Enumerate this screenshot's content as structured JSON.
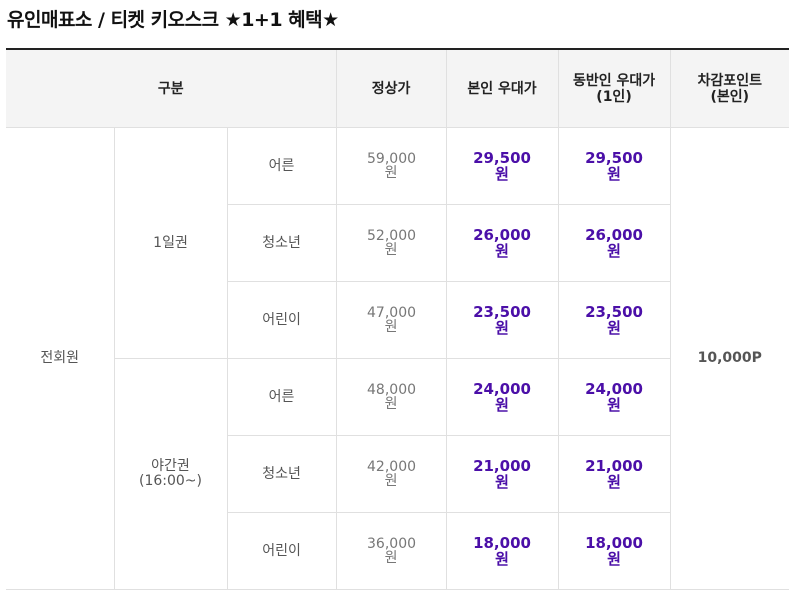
{
  "page": {
    "title": "유인매표소 / 티켓 키오스크 ★1+1 혜택★"
  },
  "table": {
    "headers": {
      "category": "구분",
      "regular": "정상가",
      "self_discount": "본인 우대가",
      "companion_discount_line1": "동반인 우대가",
      "companion_discount_line2": "(1인)",
      "points_line1": "차감포인트",
      "points_line2": "(본인)"
    },
    "member_type": "전회원",
    "points_value": "10,000P",
    "groups": [
      {
        "name": "1일권",
        "name_line2": "",
        "rows": [
          {
            "age": "어른",
            "regular": "59,000",
            "self": "29,500",
            "companion": "29,500"
          },
          {
            "age": "청소년",
            "regular": "52,000",
            "self": "26,000",
            "companion": "26,000"
          },
          {
            "age": "어린이",
            "regular": "47,000",
            "self": "23,500",
            "companion": "23,500"
          }
        ]
      },
      {
        "name": "야간권",
        "name_line2": "(16:00~)",
        "rows": [
          {
            "age": "어른",
            "regular": "48,000",
            "self": "24,000",
            "companion": "24,000"
          },
          {
            "age": "청소년",
            "regular": "42,000",
            "self": "21,000",
            "companion": "21,000"
          },
          {
            "age": "어린이",
            "regular": "36,000",
            "self": "18,000",
            "companion": "18,000"
          }
        ]
      }
    ],
    "currency_unit": "원"
  }
}
